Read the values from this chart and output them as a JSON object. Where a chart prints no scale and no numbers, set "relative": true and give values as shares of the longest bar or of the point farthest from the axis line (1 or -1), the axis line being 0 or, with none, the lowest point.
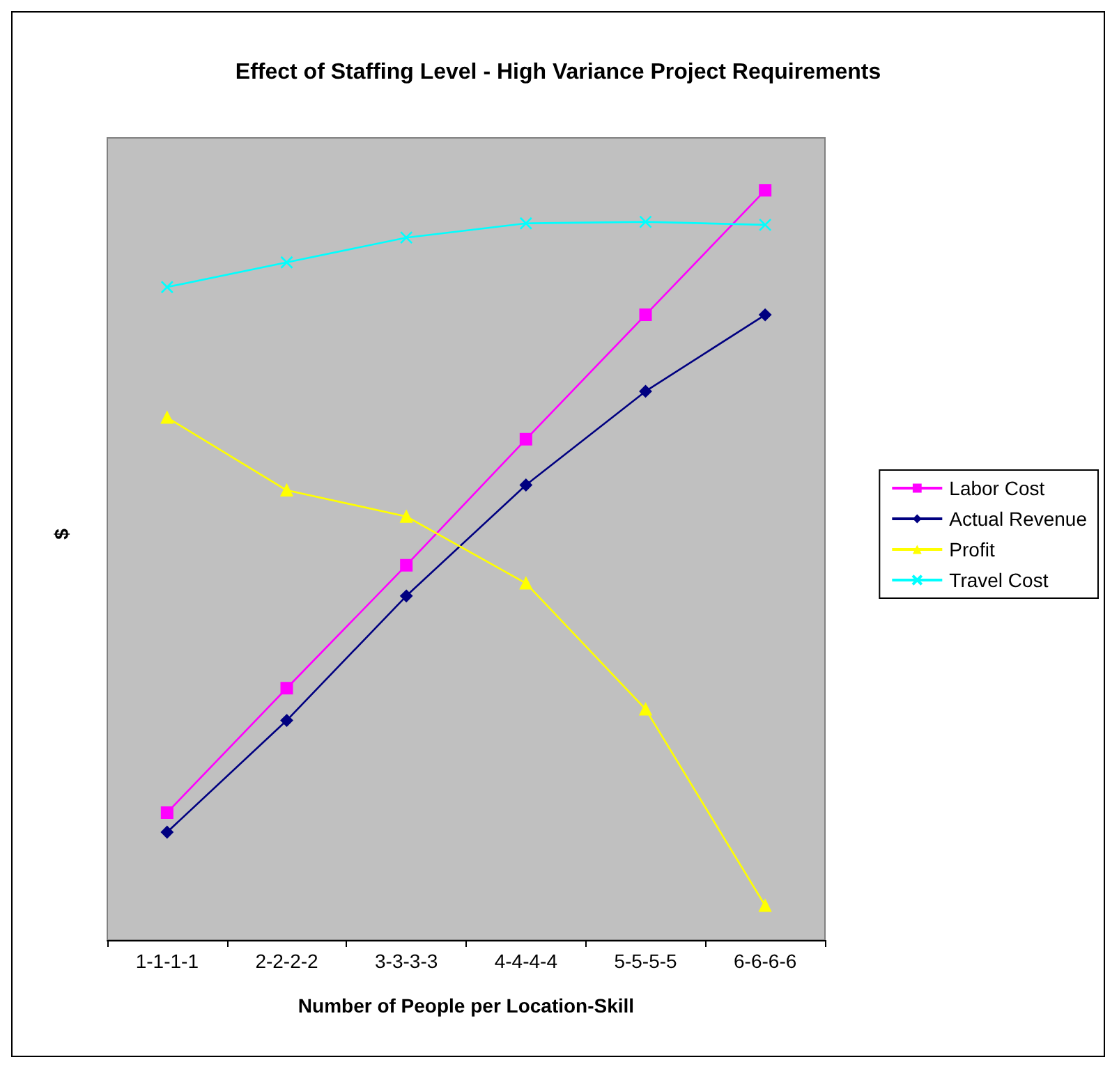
{
  "chart_data": {
    "type": "line",
    "title": "Effect of Staffing Level - High Variance Project Requirements",
    "xlabel": "Number of People per Location-Skill",
    "ylabel": "$",
    "relative": true,
    "grid": false,
    "legend": "right",
    "categories": [
      "1-1-1-1",
      "2-2-2-2",
      "3-3-3-3",
      "4-4-4-4",
      "5-5-5-5",
      "6-6-6-6"
    ],
    "series": [
      {
        "name": "Labor Cost",
        "color": "#ff00ff",
        "marker": "square",
        "values": [
          0.17,
          0.336,
          0.5,
          0.668,
          0.834,
          1
        ]
      },
      {
        "name": "Actual Revenue",
        "color": "#000080",
        "marker": "diamond",
        "values": [
          0.144,
          0.293,
          0.459,
          0.607,
          0.732,
          0.834
        ]
      },
      {
        "name": "Profit",
        "color": "#ffff00",
        "marker": "triangle",
        "values": [
          0.697,
          0.6,
          0.565,
          0.476,
          0.308,
          0.046
        ]
      },
      {
        "name": "Travel Cost",
        "color": "#00ffff",
        "marker": "cross",
        "values": [
          0.871,
          0.904,
          0.937,
          0.956,
          0.958,
          0.954
        ]
      }
    ]
  }
}
